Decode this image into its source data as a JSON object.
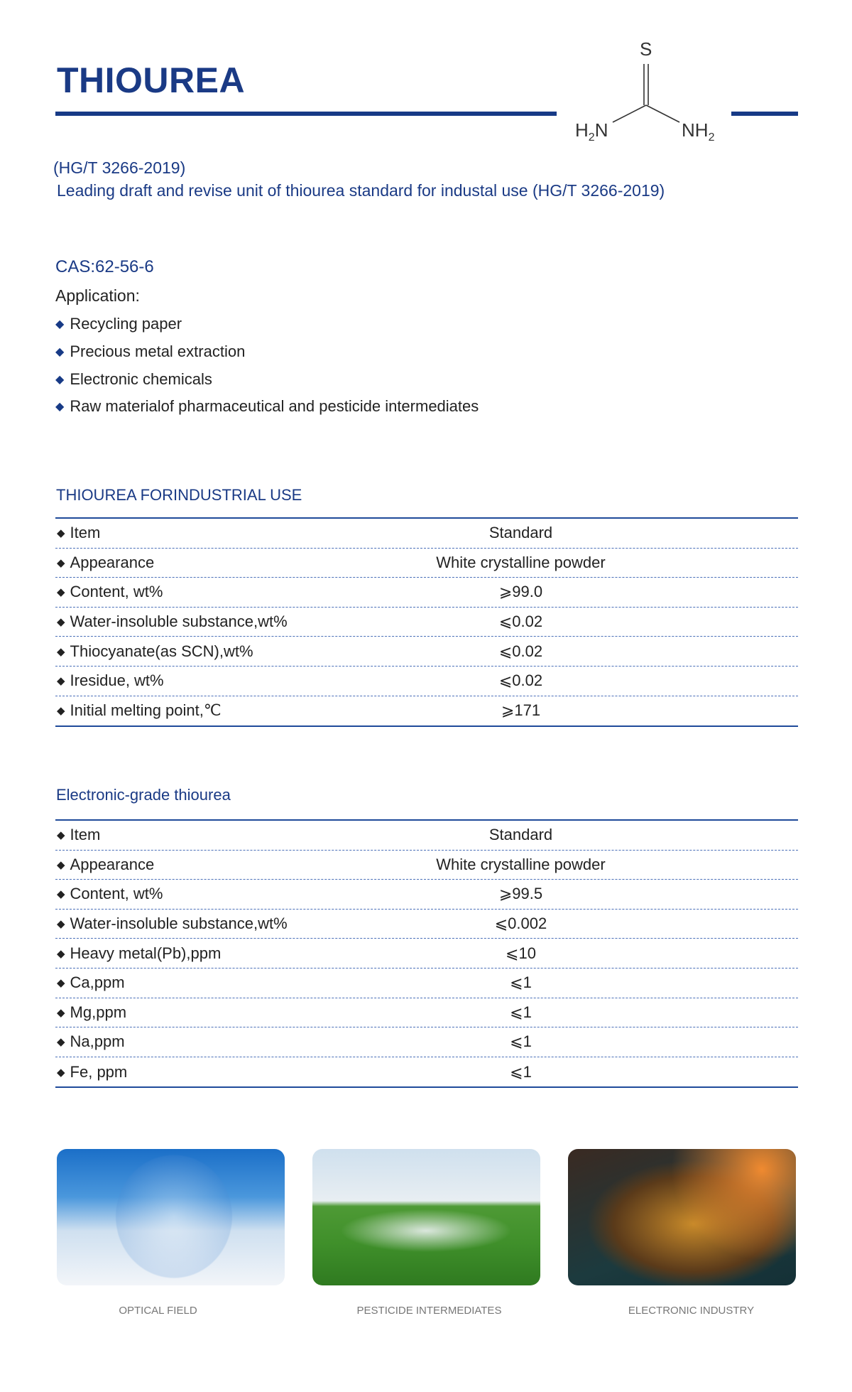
{
  "header": {
    "title": "THIOUREA",
    "standard": "(HG/T 3266-2019)",
    "tagline": "Leading draft and revise unit of thiourea standard for industal use (HG/T 3266-2019)",
    "molecule": {
      "s": "S",
      "left": "H",
      "left_sub": "2",
      "left_n": "N",
      "right_n": "NH",
      "right_sub": "2"
    }
  },
  "info": {
    "cas": "CAS:62-56-6",
    "application_label": "Application:",
    "applications": [
      "Recycling paper",
      "Precious metal extraction",
      "Electronic chemicals",
      "Raw materialof pharmaceutical and pesticide intermediates"
    ]
  },
  "table1": {
    "title": "THIOUREA FORINDUSTRIAL USE",
    "rows": [
      {
        "item": "Item",
        "value": "Standard"
      },
      {
        "item": "Appearance",
        "value": "White crystalline  powder"
      },
      {
        "item": "Content, wt%",
        "value": "⩾99.0"
      },
      {
        "item": "Water-insoluble substance,wt%",
        "value": "⩽0.02"
      },
      {
        "item": "Thiocyanate(as SCN),wt%",
        "value": "⩽0.02"
      },
      {
        "item": "Iresidue, wt%",
        "value": "⩽0.02"
      },
      {
        "item": "Initial melting point,℃",
        "value": "⩾171"
      }
    ]
  },
  "table2": {
    "title": "Electronic-grade thiourea",
    "rows": [
      {
        "item": "Item",
        "value": "Standard"
      },
      {
        "item": "Appearance",
        "value": "White crystalline powder"
      },
      {
        "item": "Content, wt%",
        "value": "⩾99.5"
      },
      {
        "item": "Water-insoluble substance,wt%",
        "value": "⩽0.002"
      },
      {
        "item": "Heavy metal(Pb),ppm",
        "value": "⩽10"
      },
      {
        "item": "Ca,ppm",
        "value": "⩽1"
      },
      {
        "item": "Mg,ppm",
        "value": "⩽1"
      },
      {
        "item": "Na,ppm",
        "value": "⩽1"
      },
      {
        "item": "Fe, ppm",
        "value": "⩽1"
      }
    ]
  },
  "gallery": [
    {
      "caption": "OPTICAL FIELD"
    },
    {
      "caption": "PESTICIDE INTERMEDIATES"
    },
    {
      "caption": "ELECTRONIC INDUSTRY"
    }
  ],
  "colors": {
    "brand": "#1a3a85"
  }
}
